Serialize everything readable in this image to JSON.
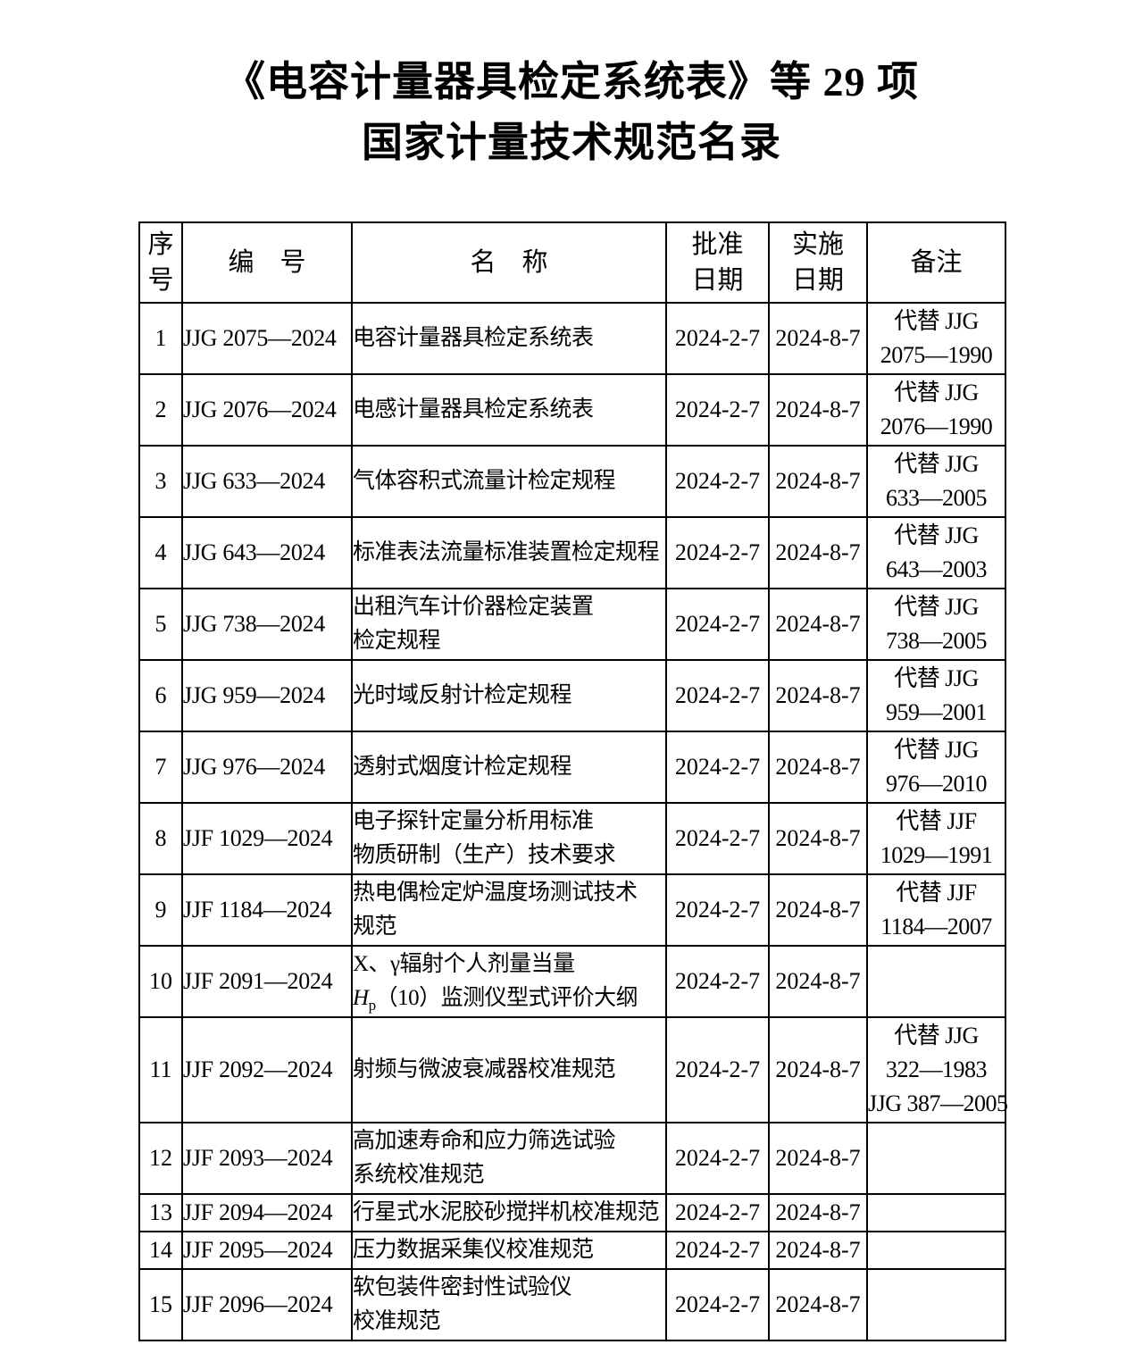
{
  "colors": {
    "background": "#ffffff",
    "text": "#000000",
    "border": "#000000"
  },
  "title": {
    "line1": "《电容计量器具检定系统表》等 29 项",
    "line2": "国家计量技术规范名录"
  },
  "table": {
    "header": {
      "no": "序\n号",
      "code": "编　号",
      "name": "名　称",
      "approval": "批准\n日期",
      "impl": "实施\n日期",
      "remark": "备注"
    },
    "rows": [
      {
        "no": "1",
        "code": "JJG 2075—2024",
        "name_lines": [
          "电容计量器具检定系统表"
        ],
        "approval": "2024-2-7",
        "impl": "2024-8-7",
        "remark_lines": [
          "代替 JJG",
          "2075—1990"
        ]
      },
      {
        "no": "2",
        "code": "JJG 2076—2024",
        "name_lines": [
          "电感计量器具检定系统表"
        ],
        "approval": "2024-2-7",
        "impl": "2024-8-7",
        "remark_lines": [
          "代替 JJG",
          "2076—1990"
        ]
      },
      {
        "no": "3",
        "code": "JJG 633—2024",
        "name_lines": [
          "气体容积式流量计检定规程"
        ],
        "approval": "2024-2-7",
        "impl": "2024-8-7",
        "remark_lines": [
          "代替 JJG",
          "633—2005"
        ]
      },
      {
        "no": "4",
        "code": "JJG 643—2024",
        "name_lines": [
          "标准表法流量标准装置检定规程"
        ],
        "approval": "2024-2-7",
        "impl": "2024-8-7",
        "remark_lines": [
          "代替 JJG",
          "643—2003"
        ]
      },
      {
        "no": "5",
        "code": "JJG 738—2024",
        "name_lines": [
          "出租汽车计价器检定装置",
          "检定规程"
        ],
        "approval": "2024-2-7",
        "impl": "2024-8-7",
        "remark_lines": [
          "代替 JJG",
          "738—2005"
        ]
      },
      {
        "no": "6",
        "code": "JJG 959—2024",
        "name_lines": [
          "光时域反射计检定规程"
        ],
        "approval": "2024-2-7",
        "impl": "2024-8-7",
        "remark_lines": [
          "代替 JJG",
          "959—2001"
        ]
      },
      {
        "no": "7",
        "code": "JJG 976—2024",
        "name_lines": [
          "透射式烟度计检定规程"
        ],
        "approval": "2024-2-7",
        "impl": "2024-8-7",
        "remark_lines": [
          "代替 JJG",
          "976—2010"
        ]
      },
      {
        "no": "8",
        "code": "JJF 1029—2024",
        "name_lines": [
          "电子探针定量分析用标准",
          "物质研制（生产）技术要求"
        ],
        "approval": "2024-2-7",
        "impl": "2024-8-7",
        "remark_lines": [
          "代替 JJF",
          "1029—1991"
        ]
      },
      {
        "no": "9",
        "code": "JJF 1184—2024",
        "name_lines": [
          "热电偶检定炉温度场测试技术",
          "规范"
        ],
        "approval": "2024-2-7",
        "impl": "2024-8-7",
        "remark_lines": [
          "代替 JJF",
          "1184—2007"
        ]
      },
      {
        "no": "10",
        "code": "JJF 2091—2024",
        "name_lines": [
          "X、γ辐射个人剂量当量",
          "Hp（10）监测仪型式评价大纲"
        ],
        "hp_line_index": 1,
        "approval": "2024-2-7",
        "impl": "2024-8-7",
        "remark_lines": []
      },
      {
        "no": "11",
        "code": "JJF 2092—2024",
        "name_lines": [
          "射频与微波衰减器校准规范"
        ],
        "approval": "2024-2-7",
        "impl": "2024-8-7",
        "remark_lines": [
          "代替 JJG",
          "322—1983",
          "JJG 387—2005"
        ]
      },
      {
        "no": "12",
        "code": "JJF 2093—2024",
        "name_lines": [
          "高加速寿命和应力筛选试验",
          "系统校准规范"
        ],
        "approval": "2024-2-7",
        "impl": "2024-8-7",
        "remark_lines": []
      },
      {
        "no": "13",
        "code": "JJF 2094—2024",
        "name_lines": [
          "行星式水泥胶砂搅拌机校准规范"
        ],
        "approval": "2024-2-7",
        "impl": "2024-8-7",
        "remark_lines": []
      },
      {
        "no": "14",
        "code": "JJF 2095—2024",
        "name_lines": [
          "压力数据采集仪校准规范"
        ],
        "approval": "2024-2-7",
        "impl": "2024-8-7",
        "remark_lines": []
      },
      {
        "no": "15",
        "code": "JJF 2096—2024",
        "name_lines": [
          "软包装件密封性试验仪",
          "校准规范"
        ],
        "approval": "2024-2-7",
        "impl": "2024-8-7",
        "remark_lines": []
      }
    ]
  }
}
